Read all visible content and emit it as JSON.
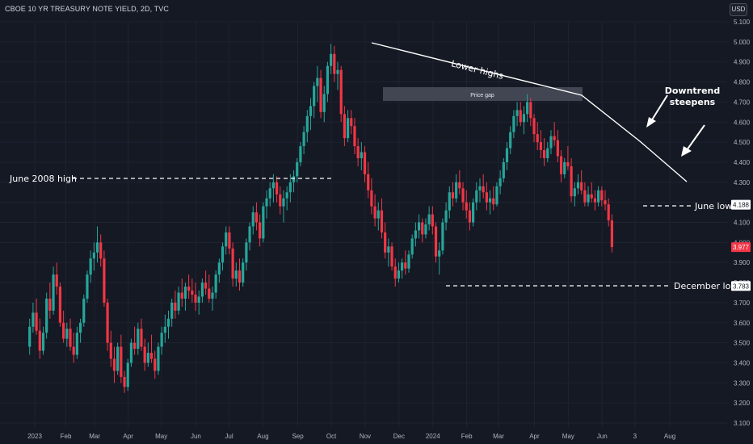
{
  "header": {
    "title": "CBOE 10 YR TREASURY NOTE YIELD, 2D, TVC"
  },
  "currency_button": {
    "label": "USD"
  },
  "colors": {
    "background": "#151924",
    "up": "#26a69a",
    "down": "#f23645",
    "grid": "#1f2330",
    "text": "#d1d4dc",
    "annotation": "#ffffff",
    "price_gap_box": "#4a4e5a"
  },
  "chart_data": {
    "type": "candlestick",
    "title": "CBOE 10 YR TREASURY NOTE YIELD, 2D, TVC",
    "ylim": [
      3.1,
      5.1
    ],
    "y_ticks": [
      "5.100",
      "5.000",
      "4.900",
      "4.800",
      "4.700",
      "4.600",
      "4.500",
      "4.400",
      "4.300",
      "4.200",
      "4.100",
      "4.000",
      "3.900",
      "3.800",
      "3.700",
      "3.600",
      "3.500",
      "3.400",
      "3.300",
      "3.200",
      "3.100"
    ],
    "x_ticks": [
      "2023",
      "Feb",
      "Mar",
      "Apr",
      "May",
      "Jun",
      "Jul",
      "Aug",
      "Sep",
      "Oct",
      "Nov",
      "Dec",
      "2024",
      "Feb",
      "Mar",
      "Apr",
      "May",
      "Jun",
      "3",
      "Aug"
    ],
    "x_tick_positions": [
      0,
      0.92,
      1.77,
      2.76,
      3.74,
      4.76,
      5.74,
      6.74,
      7.77,
      8.76,
      9.76,
      10.76,
      11.76,
      12.76,
      13.7,
      14.76,
      15.76,
      16.76,
      17.73,
      18.76
    ],
    "candles": [
      [
        -0.15,
        3.48,
        3.62,
        3.44,
        3.58
      ],
      [
        -0.05,
        3.58,
        3.7,
        3.55,
        3.65
      ],
      [
        0.05,
        3.65,
        3.72,
        3.54,
        3.56
      ],
      [
        0.15,
        3.56,
        3.62,
        3.42,
        3.46
      ],
      [
        0.25,
        3.46,
        3.58,
        3.44,
        3.55
      ],
      [
        0.35,
        3.55,
        3.75,
        3.52,
        3.72
      ],
      [
        0.45,
        3.72,
        3.8,
        3.62,
        3.66
      ],
      [
        0.55,
        3.66,
        3.88,
        3.64,
        3.84
      ],
      [
        0.65,
        3.84,
        3.9,
        3.74,
        3.78
      ],
      [
        0.75,
        3.78,
        3.8,
        3.58,
        3.6
      ],
      [
        0.85,
        3.6,
        3.66,
        3.5,
        3.52
      ],
      [
        0.95,
        3.52,
        3.6,
        3.48,
        3.57
      ],
      [
        1.05,
        3.57,
        3.62,
        3.46,
        3.48
      ],
      [
        1.15,
        3.48,
        3.55,
        3.4,
        3.44
      ],
      [
        1.25,
        3.44,
        3.58,
        3.42,
        3.55
      ],
      [
        1.35,
        3.55,
        3.62,
        3.5,
        3.6
      ],
      [
        1.45,
        3.6,
        3.74,
        3.58,
        3.72
      ],
      [
        1.55,
        3.72,
        3.86,
        3.7,
        3.84
      ],
      [
        1.65,
        3.84,
        3.96,
        3.8,
        3.92
      ],
      [
        1.75,
        3.92,
        4.0,
        3.86,
        3.95
      ],
      [
        1.85,
        3.95,
        4.08,
        3.9,
        4.0
      ],
      [
        1.95,
        4.0,
        4.04,
        3.88,
        3.92
      ],
      [
        2.05,
        3.92,
        3.96,
        3.68,
        3.7
      ],
      [
        2.15,
        3.7,
        3.72,
        3.46,
        3.5
      ],
      [
        2.25,
        3.5,
        3.56,
        3.38,
        3.42
      ],
      [
        2.35,
        3.42,
        3.48,
        3.3,
        3.36
      ],
      [
        2.45,
        3.36,
        3.5,
        3.34,
        3.48
      ],
      [
        2.55,
        3.48,
        3.54,
        3.3,
        3.33
      ],
      [
        2.65,
        3.33,
        3.36,
        3.25,
        3.28
      ],
      [
        2.75,
        3.28,
        3.42,
        3.26,
        3.4
      ],
      [
        2.85,
        3.4,
        3.52,
        3.38,
        3.5
      ],
      [
        2.95,
        3.5,
        3.58,
        3.44,
        3.47
      ],
      [
        3.05,
        3.47,
        3.6,
        3.44,
        3.57
      ],
      [
        3.15,
        3.57,
        3.62,
        3.46,
        3.48
      ],
      [
        3.25,
        3.48,
        3.52,
        3.36,
        3.4
      ],
      [
        3.35,
        3.4,
        3.5,
        3.38,
        3.45
      ],
      [
        3.45,
        3.45,
        3.54,
        3.4,
        3.42
      ],
      [
        3.55,
        3.42,
        3.46,
        3.32,
        3.36
      ],
      [
        3.65,
        3.36,
        3.5,
        3.34,
        3.48
      ],
      [
        3.75,
        3.48,
        3.58,
        3.44,
        3.55
      ],
      [
        3.85,
        3.55,
        3.64,
        3.5,
        3.58
      ],
      [
        3.95,
        3.58,
        3.66,
        3.52,
        3.62
      ],
      [
        4.05,
        3.62,
        3.72,
        3.58,
        3.7
      ],
      [
        4.15,
        3.7,
        3.76,
        3.62,
        3.66
      ],
      [
        4.25,
        3.66,
        3.78,
        3.64,
        3.75
      ],
      [
        4.35,
        3.75,
        3.82,
        3.68,
        3.72
      ],
      [
        4.45,
        3.72,
        3.8,
        3.66,
        3.78
      ],
      [
        4.55,
        3.78,
        3.84,
        3.72,
        3.76
      ],
      [
        4.65,
        3.76,
        3.82,
        3.7,
        3.74
      ],
      [
        4.75,
        3.74,
        3.8,
        3.66,
        3.7
      ],
      [
        4.85,
        3.7,
        3.76,
        3.64,
        3.73
      ],
      [
        4.95,
        3.73,
        3.82,
        3.7,
        3.8
      ],
      [
        5.05,
        3.8,
        3.86,
        3.74,
        3.77
      ],
      [
        5.15,
        3.77,
        3.84,
        3.7,
        3.72
      ],
      [
        5.25,
        3.72,
        3.78,
        3.66,
        3.75
      ],
      [
        5.35,
        3.75,
        3.86,
        3.72,
        3.84
      ],
      [
        5.45,
        3.84,
        3.92,
        3.8,
        3.9
      ],
      [
        5.55,
        3.9,
        4.0,
        3.86,
        3.98
      ],
      [
        5.65,
        3.98,
        4.08,
        3.94,
        4.05
      ],
      [
        5.75,
        4.05,
        4.08,
        3.94,
        3.97
      ],
      [
        5.85,
        3.97,
        4.0,
        3.78,
        3.82
      ],
      [
        5.95,
        3.82,
        3.9,
        3.78,
        3.86
      ],
      [
        6.05,
        3.86,
        3.92,
        3.76,
        3.8
      ],
      [
        6.15,
        3.8,
        3.92,
        3.78,
        3.9
      ],
      [
        6.25,
        3.9,
        4.02,
        3.86,
        4.0
      ],
      [
        6.35,
        4.0,
        4.1,
        3.96,
        4.08
      ],
      [
        6.45,
        4.08,
        4.18,
        4.04,
        4.15
      ],
      [
        6.55,
        4.15,
        4.2,
        4.06,
        4.1
      ],
      [
        6.65,
        4.1,
        4.14,
        3.98,
        4.02
      ],
      [
        6.75,
        4.02,
        4.2,
        4.0,
        4.18
      ],
      [
        6.85,
        4.18,
        4.26,
        4.12,
        4.22
      ],
      [
        6.95,
        4.22,
        4.3,
        4.18,
        4.27
      ],
      [
        7.05,
        4.27,
        4.34,
        4.2,
        4.3
      ],
      [
        7.15,
        4.3,
        4.33,
        4.2,
        4.24
      ],
      [
        7.25,
        4.24,
        4.28,
        4.14,
        4.18
      ],
      [
        7.35,
        4.18,
        4.26,
        4.1,
        4.22
      ],
      [
        7.45,
        4.22,
        4.28,
        4.16,
        4.25
      ],
      [
        7.55,
        4.25,
        4.34,
        4.2,
        4.3
      ],
      [
        7.65,
        4.3,
        4.36,
        4.25,
        4.33
      ],
      [
        7.75,
        4.33,
        4.42,
        4.3,
        4.4
      ],
      [
        7.85,
        4.4,
        4.5,
        4.38,
        4.48
      ],
      [
        7.95,
        4.48,
        4.58,
        4.44,
        4.55
      ],
      [
        8.05,
        4.55,
        4.66,
        4.5,
        4.63
      ],
      [
        8.15,
        4.63,
        4.72,
        4.56,
        4.68
      ],
      [
        8.25,
        4.68,
        4.8,
        4.62,
        4.78
      ],
      [
        8.35,
        4.78,
        4.88,
        4.7,
        4.82
      ],
      [
        8.45,
        4.82,
        4.86,
        4.62,
        4.65
      ],
      [
        8.55,
        4.65,
        4.78,
        4.6,
        4.74
      ],
      [
        8.65,
        4.74,
        4.9,
        4.7,
        4.88
      ],
      [
        8.75,
        4.88,
        4.99,
        4.84,
        4.94
      ],
      [
        8.85,
        4.94,
        4.98,
        4.8,
        4.84
      ],
      [
        8.95,
        4.84,
        4.9,
        4.76,
        4.86
      ],
      [
        9.05,
        4.86,
        4.88,
        4.6,
        4.64
      ],
      [
        9.15,
        4.64,
        4.68,
        4.48,
        4.52
      ],
      [
        9.25,
        4.52,
        4.66,
        4.5,
        4.62
      ],
      [
        9.35,
        4.62,
        4.66,
        4.54,
        4.58
      ],
      [
        9.45,
        4.58,
        4.62,
        4.44,
        4.48
      ],
      [
        9.55,
        4.48,
        4.52,
        4.38,
        4.42
      ],
      [
        9.65,
        4.42,
        4.5,
        4.36,
        4.45
      ],
      [
        9.75,
        4.45,
        4.48,
        4.3,
        4.34
      ],
      [
        9.85,
        4.34,
        4.4,
        4.22,
        4.26
      ],
      [
        9.95,
        4.26,
        4.32,
        4.14,
        4.18
      ],
      [
        10.05,
        4.18,
        4.24,
        4.08,
        4.12
      ],
      [
        10.15,
        4.12,
        4.2,
        4.06,
        4.16
      ],
      [
        10.25,
        4.16,
        4.22,
        4.02,
        4.05
      ],
      [
        10.35,
        4.05,
        4.1,
        3.92,
        3.95
      ],
      [
        10.45,
        3.95,
        4.02,
        3.88,
        3.98
      ],
      [
        10.55,
        3.98,
        4.0,
        3.86,
        3.88
      ],
      [
        10.65,
        3.88,
        3.92,
        3.78,
        3.82
      ],
      [
        10.75,
        3.82,
        3.9,
        3.8,
        3.86
      ],
      [
        10.85,
        3.86,
        3.92,
        3.82,
        3.9
      ],
      [
        10.95,
        3.9,
        3.96,
        3.84,
        3.87
      ],
      [
        11.05,
        3.87,
        3.96,
        3.85,
        3.94
      ],
      [
        11.15,
        3.94,
        4.04,
        3.92,
        4.02
      ],
      [
        11.25,
        4.02,
        4.1,
        3.98,
        4.06
      ],
      [
        11.35,
        4.06,
        4.14,
        4.02,
        4.1
      ],
      [
        11.45,
        4.1,
        4.12,
        4.0,
        4.04
      ],
      [
        11.55,
        4.04,
        4.12,
        4.02,
        4.09
      ],
      [
        11.65,
        4.09,
        4.18,
        4.06,
        4.14
      ],
      [
        11.75,
        4.14,
        4.18,
        4.04,
        4.08
      ],
      [
        11.85,
        4.08,
        4.1,
        3.9,
        3.93
      ],
      [
        11.95,
        3.93,
        4.0,
        3.84,
        3.96
      ],
      [
        12.05,
        3.96,
        4.12,
        3.94,
        4.1
      ],
      [
        12.15,
        4.1,
        4.2,
        4.06,
        4.16
      ],
      [
        12.25,
        4.16,
        4.28,
        4.12,
        4.25
      ],
      [
        12.35,
        4.25,
        4.3,
        4.18,
        4.22
      ],
      [
        12.45,
        4.22,
        4.34,
        4.2,
        4.3
      ],
      [
        12.55,
        4.3,
        4.36,
        4.24,
        4.27
      ],
      [
        12.65,
        4.27,
        4.3,
        4.16,
        4.2
      ],
      [
        12.75,
        4.2,
        4.26,
        4.12,
        4.16
      ],
      [
        12.85,
        4.16,
        4.2,
        4.06,
        4.1
      ],
      [
        12.95,
        4.1,
        4.22,
        4.08,
        4.2
      ],
      [
        13.05,
        4.2,
        4.3,
        4.16,
        4.26
      ],
      [
        13.15,
        4.26,
        4.32,
        4.2,
        4.28
      ],
      [
        13.25,
        4.28,
        4.34,
        4.22,
        4.25
      ],
      [
        13.35,
        4.25,
        4.3,
        4.16,
        4.2
      ],
      [
        13.45,
        4.2,
        4.26,
        4.14,
        4.22
      ],
      [
        13.55,
        4.22,
        4.28,
        4.16,
        4.19
      ],
      [
        13.65,
        4.19,
        4.3,
        4.18,
        4.28
      ],
      [
        13.75,
        4.28,
        4.36,
        4.24,
        4.32
      ],
      [
        13.85,
        4.32,
        4.42,
        4.3,
        4.4
      ],
      [
        13.95,
        4.4,
        4.5,
        4.36,
        4.47
      ],
      [
        14.05,
        4.47,
        4.58,
        4.44,
        4.55
      ],
      [
        14.15,
        4.55,
        4.66,
        4.52,
        4.63
      ],
      [
        14.25,
        4.63,
        4.7,
        4.58,
        4.66
      ],
      [
        14.35,
        4.66,
        4.7,
        4.58,
        4.6
      ],
      [
        14.45,
        4.6,
        4.68,
        4.54,
        4.64
      ],
      [
        14.55,
        4.64,
        4.74,
        4.6,
        4.7
      ],
      [
        14.65,
        4.7,
        4.72,
        4.58,
        4.62
      ],
      [
        14.75,
        4.62,
        4.64,
        4.5,
        4.54
      ],
      [
        14.85,
        4.54,
        4.6,
        4.46,
        4.5
      ],
      [
        14.95,
        4.5,
        4.56,
        4.42,
        4.46
      ],
      [
        15.05,
        4.46,
        4.52,
        4.38,
        4.42
      ],
      [
        15.15,
        4.42,
        4.5,
        4.4,
        4.47
      ],
      [
        15.25,
        4.47,
        4.56,
        4.44,
        4.53
      ],
      [
        15.35,
        4.53,
        4.6,
        4.48,
        4.51
      ],
      [
        15.45,
        4.51,
        4.56,
        4.4,
        4.43
      ],
      [
        15.55,
        4.43,
        4.46,
        4.3,
        4.34
      ],
      [
        15.65,
        4.34,
        4.42,
        4.32,
        4.4
      ],
      [
        15.75,
        4.4,
        4.48,
        4.36,
        4.38
      ],
      [
        15.85,
        4.38,
        4.42,
        4.2,
        4.23
      ],
      [
        15.95,
        4.23,
        4.3,
        4.18,
        4.27
      ],
      [
        16.05,
        4.27,
        4.34,
        4.24,
        4.3
      ],
      [
        16.15,
        4.3,
        4.36,
        4.24,
        4.26
      ],
      [
        16.25,
        4.26,
        4.3,
        4.18,
        4.2
      ],
      [
        16.35,
        4.2,
        4.28,
        4.18,
        4.24
      ],
      [
        16.45,
        4.24,
        4.3,
        4.2,
        4.22
      ],
      [
        16.55,
        4.22,
        4.26,
        4.16,
        4.2
      ],
      [
        16.65,
        4.2,
        4.28,
        4.18,
        4.26
      ],
      [
        16.75,
        4.26,
        4.28,
        4.18,
        4.21
      ],
      [
        16.85,
        4.21,
        4.26,
        4.16,
        4.19
      ],
      [
        16.95,
        4.19,
        4.22,
        4.08,
        4.11
      ],
      [
        17.05,
        4.11,
        4.14,
        3.95,
        3.977
      ]
    ]
  },
  "annotations": {
    "lower_highs": "Lower highs",
    "price_gap": "Price gap",
    "downtrend_line1": "Downtrend",
    "downtrend_line2": "steepens",
    "june_2008_high": "June 2008 high",
    "june_low": "June low",
    "december_low": "December low"
  },
  "price_tags": [
    {
      "label": "4.188",
      "value": 4.188,
      "bg": "#ffffff",
      "fg": "#131722"
    },
    {
      "label": "3.977",
      "value": 3.977,
      "bg": "#f23645",
      "fg": "#ffffff"
    },
    {
      "label": "3.783",
      "value": 3.783,
      "bg": "#ffffff",
      "fg": "#131722"
    }
  ]
}
